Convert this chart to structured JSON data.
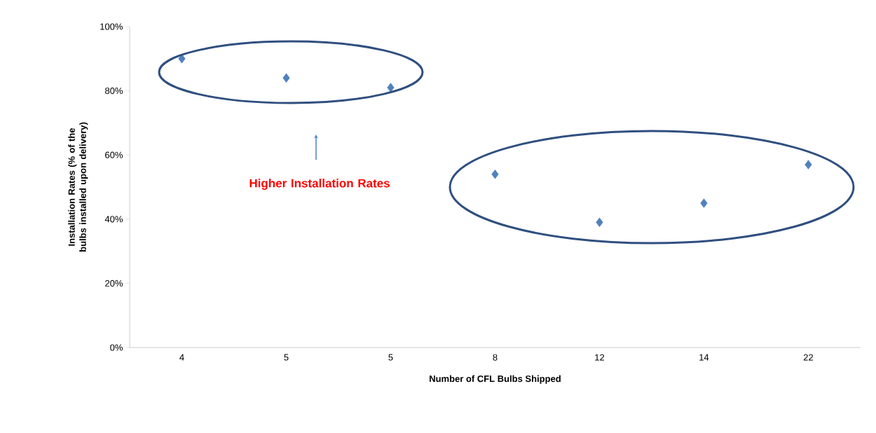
{
  "chart_data": {
    "type": "scatter",
    "xlabel": "Number of CFL Bulbs Shipped",
    "ylabel": "Installation Rates (% of the bulbs installed upon delivery)",
    "categories": [
      "4",
      "5",
      "5",
      "8",
      "12",
      "14",
      "22"
    ],
    "values": [
      90,
      84,
      81,
      54,
      39,
      45,
      57
    ],
    "color": "#4f81bd",
    "marker": "diamond",
    "ylim": [
      0,
      100
    ],
    "yticks": [
      {
        "value": 0,
        "label": "0%"
      },
      {
        "value": 20,
        "label": "20%"
      },
      {
        "value": 40,
        "label": "40%"
      },
      {
        "value": 60,
        "label": "60%"
      },
      {
        "value": 80,
        "label": "80%"
      },
      {
        "value": 100,
        "label": "100%"
      }
    ],
    "annotations": [
      "Higher Installation Rates"
    ]
  }
}
